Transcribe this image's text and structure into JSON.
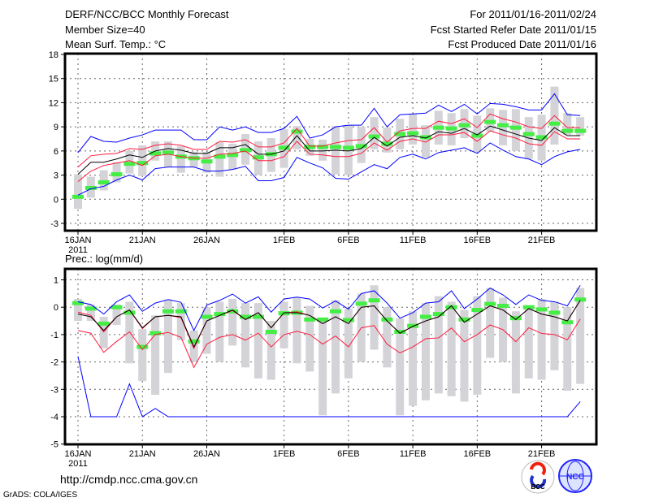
{
  "header": {
    "title": "DERF/NCC/BCC Monthly Forecast",
    "member_size": "Member Size=40",
    "variable": "Mean Surf. Temp.: °C",
    "period": "For 2011/01/16-2011/02/24",
    "started": "Fcst Started Refer Date 2011/01/15",
    "produced": "Fcst Produced Date 2011/01/16"
  },
  "footer": {
    "url": "http://cmdp.ncc.cma.gov.cn",
    "grads": "GrADS: COLA/IGES",
    "logo_bcc": "BCC",
    "logo_ncc": "NCC"
  },
  "colors": {
    "max_min": "#0000ff",
    "spread": "#ff1a3c",
    "mean": "#000000",
    "median": "#44ee44",
    "box": "#d3d3d8"
  },
  "chart_data": [
    {
      "type": "line",
      "title": "Mean Surf. Temp.: °C",
      "x_tick_labels": [
        "16JAN",
        "21JAN",
        "26JAN",
        "1FEB",
        "6FEB",
        "11FEB",
        "16FEB",
        "21FEB"
      ],
      "x_tick_days": [
        0,
        5,
        10,
        16,
        21,
        26,
        31,
        36
      ],
      "x_year_label": "2011",
      "y_ticks": [
        "18",
        "15",
        "12",
        "9",
        "6",
        "3",
        "0",
        "-3"
      ],
      "y_tick_values": [
        18,
        15,
        12,
        9,
        6,
        3,
        0,
        -3
      ],
      "ylim": [
        -3.9,
        18
      ],
      "grid": true,
      "days": 40,
      "series": [
        {
          "name": "max",
          "color_key": "max_min",
          "values": [
            5.8,
            7.8,
            7.2,
            7.1,
            7.6,
            8.0,
            8.6,
            8.6,
            8.6,
            7.4,
            7.4,
            9.0,
            8.6,
            9.0,
            8.3,
            8.3,
            8.8,
            10.3,
            7.6,
            8.0,
            9.0,
            9.2,
            9.2,
            11.3,
            9.0,
            10.5,
            10.6,
            10.7,
            11.7,
            10.9,
            11.8,
            10.6,
            11.9,
            11.8,
            11.5,
            11.1,
            11.1,
            13.1,
            10.5,
            10.4
          ]
        },
        {
          "name": "min",
          "color_key": "max_min",
          "values": [
            0.5,
            1.3,
            1.6,
            2.4,
            3.0,
            2.4,
            3.8,
            4.0,
            4.0,
            4.0,
            3.5,
            3.5,
            3.7,
            4.1,
            2.3,
            2.3,
            2.7,
            5.2,
            4.5,
            3.9,
            2.6,
            2.5,
            3.4,
            4.3,
            3.8,
            5.2,
            5.6,
            5.0,
            5.8,
            6.1,
            6.4,
            5.7,
            7.0,
            6.1,
            5.3,
            5.0,
            4.3,
            5.3,
            5.9,
            6.2
          ]
        },
        {
          "name": "upper",
          "color_key": "spread",
          "values": [
            4.0,
            5.4,
            5.6,
            5.7,
            6.3,
            6.2,
            6.7,
            6.9,
            6.7,
            6.2,
            6.2,
            7.2,
            7.1,
            7.4,
            6.5,
            6.5,
            7.0,
            8.8,
            6.6,
            6.6,
            7.0,
            7.3,
            7.4,
            8.9,
            7.1,
            8.5,
            8.8,
            8.8,
            9.7,
            9.4,
            10.0,
            8.9,
            10.6,
            10.0,
            9.6,
            9.0,
            8.8,
            10.4,
            8.9,
            8.9
          ]
        },
        {
          "name": "lower",
          "color_key": "spread",
          "values": [
            2.2,
            3.5,
            4.2,
            4.5,
            4.8,
            4.2,
            5.4,
            5.6,
            5.3,
            5.1,
            5.1,
            5.6,
            5.7,
            6.0,
            4.8,
            4.8,
            5.3,
            7.2,
            5.6,
            5.5,
            5.3,
            5.3,
            5.7,
            7.0,
            6.1,
            7.2,
            7.5,
            7.1,
            8.0,
            8.0,
            8.3,
            7.2,
            8.5,
            8.0,
            7.6,
            6.9,
            6.7,
            8.4,
            7.5,
            7.5
          ]
        },
        {
          "name": "mean",
          "color_key": "mean",
          "values": [
            3.1,
            4.6,
            4.6,
            5.0,
            5.5,
            5.2,
            6.0,
            6.3,
            6.1,
            5.7,
            5.7,
            6.4,
            6.4,
            6.8,
            5.6,
            5.6,
            6.0,
            7.9,
            6.0,
            6.0,
            6.1,
            6.0,
            6.3,
            7.7,
            6.6,
            7.7,
            7.9,
            7.6,
            8.4,
            8.2,
            8.8,
            8.0,
            9.1,
            8.6,
            8.1,
            7.6,
            7.3,
            8.9,
            7.9,
            7.9
          ]
        }
      ],
      "median": [
        0.3,
        1.4,
        2.1,
        3.1,
        4.4,
        4.5,
        5.7,
        5.8,
        5.3,
        5.1,
        4.7,
        5.3,
        5.5,
        6.1,
        5.2,
        5.6,
        6.4,
        8.4,
        6.5,
        6.5,
        6.5,
        6.4,
        6.6,
        7.8,
        6.9,
        8.1,
        8.2,
        7.7,
        8.9,
        8.8,
        9.2,
        7.9,
        9.6,
        9.2,
        8.9,
        8.1,
        7.7,
        9.4,
        8.5,
        8.5
      ],
      "box_range": [
        [
          -1.2,
          3.1
        ],
        [
          0.2,
          2.8
        ],
        [
          1.1,
          3.6
        ],
        [
          2.1,
          4.6
        ],
        [
          3.2,
          6.0
        ],
        [
          2.9,
          6.7
        ],
        [
          4.8,
          7.2
        ],
        [
          4.0,
          7.2
        ],
        [
          3.3,
          6.6
        ],
        [
          4.0,
          5.9
        ],
        [
          3.3,
          5.9
        ],
        [
          2.8,
          7.1
        ],
        [
          3.7,
          6.9
        ],
        [
          4.3,
          8.1
        ],
        [
          3.0,
          7.2
        ],
        [
          3.4,
          7.6
        ],
        [
          3.9,
          8.7
        ],
        [
          6.2,
          9.1
        ],
        [
          5.4,
          7.5
        ],
        [
          4.8,
          7.4
        ],
        [
          3.1,
          9.1
        ],
        [
          3.0,
          9.2
        ],
        [
          4.5,
          9.0
        ],
        [
          6.2,
          10.2
        ],
        [
          5.8,
          8.9
        ],
        [
          6.2,
          10.0
        ],
        [
          6.8,
          10.6
        ],
        [
          5.2,
          9.2
        ],
        [
          6.8,
          11.0
        ],
        [
          6.7,
          10.7
        ],
        [
          7.6,
          11.2
        ],
        [
          5.9,
          10.4
        ],
        [
          8.4,
          11.3
        ],
        [
          6.7,
          11.1
        ],
        [
          6.0,
          11.2
        ],
        [
          5.0,
          10.2
        ],
        [
          4.8,
          10.5
        ],
        [
          6.8,
          14.0
        ],
        [
          8.0,
          10.7
        ],
        [
          7.9,
          10.2
        ]
      ]
    },
    {
      "type": "line",
      "title": "Prec.: log(mm/d)",
      "x_tick_labels": [
        "16JAN",
        "21JAN",
        "26JAN",
        "1FEB",
        "6FEB",
        "11FEB",
        "16FEB",
        "21FEB"
      ],
      "x_tick_days": [
        0,
        5,
        10,
        16,
        21,
        26,
        31,
        36
      ],
      "x_year_label": "2011",
      "y_ticks": [
        "1",
        "0",
        "-1",
        "-2",
        "-3",
        "-4",
        "-5"
      ],
      "y_tick_values": [
        1,
        0,
        -1,
        -2,
        -3,
        -4,
        -5
      ],
      "ylim": [
        -5,
        1.45
      ],
      "grid": true,
      "days": 40,
      "series": [
        {
          "name": "max",
          "color_key": "max_min",
          "values": [
            0.2,
            0.1,
            -0.25,
            0.2,
            0.45,
            -0.15,
            0.15,
            0.28,
            0.18,
            -0.85,
            0.08,
            0.25,
            0.48,
            0.15,
            0.38,
            -0.18,
            0.3,
            0.37,
            0.3,
            -0.03,
            0.23,
            -0.07,
            0.5,
            0.6,
            0.15,
            -0.4,
            -0.2,
            0.15,
            0.2,
            0.6,
            -0.05,
            0.3,
            0.7,
            0.45,
            0.1,
            0.45,
            0.25,
            0.2,
            0.05,
            0.8
          ]
        },
        {
          "name": "min",
          "color_key": "max_min",
          "values": [
            -1.8,
            -4,
            -4,
            -4,
            -2.8,
            -4,
            -3.7,
            -4,
            -4,
            -4,
            -4,
            -4,
            -4,
            -4,
            -4,
            -4,
            -4,
            -4,
            -4,
            -4,
            -4,
            -4,
            -4,
            -4,
            -4,
            -4,
            -4,
            -4,
            -4,
            -4,
            -4,
            -4,
            -4,
            -4,
            -4,
            -4,
            -4,
            -4,
            -4,
            -3.45
          ]
        },
        {
          "name": "lower",
          "color_key": "spread",
          "values": [
            -0.85,
            -0.95,
            -1.65,
            -1.25,
            -0.9,
            -1.55,
            -1.0,
            -0.92,
            -1.1,
            -2.2,
            -1.35,
            -1.1,
            -1.0,
            -1.2,
            -0.95,
            -1.45,
            -1.0,
            -0.88,
            -1.0,
            -1.35,
            -1.05,
            -1.45,
            -0.75,
            -0.67,
            -1.35,
            -1.67,
            -1.45,
            -1.15,
            -1.12,
            -0.76,
            -1.26,
            -1.0,
            -0.65,
            -0.82,
            -1.26,
            -0.75,
            -0.96,
            -1.0,
            -1.19,
            -0.43
          ]
        },
        {
          "name": "upper",
          "color_key": "spread",
          "values": [
            -0.18,
            -0.3,
            -0.9,
            -0.35,
            -0.1,
            -0.78,
            -0.35,
            -0.3,
            -0.38,
            -1.5,
            -0.5,
            -0.3,
            -0.12,
            -0.45,
            -0.2,
            -0.75,
            -0.2,
            -0.17,
            -0.3,
            -0.6,
            -0.35,
            -0.6,
            0.0,
            0.05,
            -0.5,
            -0.95,
            -0.7,
            -0.5,
            -0.35,
            0.05,
            -0.55,
            -0.25,
            0.05,
            -0.1,
            -0.45,
            -0.05,
            -0.25,
            -0.35,
            -0.5,
            0.25
          ]
        },
        {
          "name": "mean",
          "color_key": "mean",
          "values": [
            -0.25,
            -0.35,
            -0.85,
            -0.35,
            -0.1,
            -0.75,
            -0.35,
            -0.3,
            -0.35,
            -1.45,
            -0.5,
            -0.3,
            -0.1,
            -0.45,
            -0.2,
            -0.75,
            -0.2,
            -0.2,
            -0.3,
            -0.6,
            -0.35,
            -0.6,
            0.0,
            0.05,
            -0.5,
            -0.95,
            -0.7,
            -0.5,
            -0.35,
            0.05,
            -0.55,
            -0.25,
            0.05,
            -0.1,
            -0.45,
            -0.05,
            -0.25,
            -0.35,
            -0.5,
            0.25
          ]
        }
      ],
      "median": [
        0.15,
        -0.05,
        -0.6,
        0.0,
        -0.2,
        -1.45,
        -0.95,
        -0.15,
        -0.15,
        -1.25,
        -0.35,
        -0.25,
        -0.15,
        -0.35,
        -0.35,
        -0.9,
        -0.22,
        -0.2,
        -0.45,
        -0.45,
        -0.15,
        -0.47,
        0.13,
        0.25,
        -0.45,
        -0.9,
        -0.68,
        -0.35,
        -0.25,
        0.0,
        -0.45,
        -0.1,
        0.12,
        0.05,
        -0.4,
        0.0,
        -0.08,
        -0.2,
        -0.55,
        0.28
      ],
      "box_range": [
        [
          -0.5,
          0.3
        ],
        [
          -0.5,
          0.1
        ],
        [
          -1.5,
          -0.35
        ],
        [
          -0.65,
          0.1
        ],
        [
          -2.05,
          0.2
        ],
        [
          -2.7,
          -0.8
        ],
        [
          -3.2,
          -0.3
        ],
        [
          -2.4,
          0.25
        ],
        [
          -1.2,
          0.15
        ],
        [
          -2.0,
          -0.85
        ],
        [
          -1.7,
          0.0
        ],
        [
          -2.0,
          0.2
        ],
        [
          -1.4,
          0.3
        ],
        [
          -2.2,
          0.15
        ],
        [
          -2.6,
          0.15
        ],
        [
          -2.65,
          -0.5
        ],
        [
          -1.5,
          0.2
        ],
        [
          -2.05,
          0.35
        ],
        [
          -2.35,
          0.05
        ],
        [
          -3.95,
          -0.4
        ],
        [
          -3.15,
          0.25
        ],
        [
          -2.6,
          -0.05
        ],
        [
          -2.0,
          0.5
        ],
        [
          -1.55,
          0.8
        ],
        [
          -2.2,
          0.0
        ],
        [
          -3.95,
          -0.4
        ],
        [
          -3.6,
          -0.15
        ],
        [
          -3.4,
          0.15
        ],
        [
          -3.15,
          0.4
        ],
        [
          -3.25,
          0.2
        ],
        [
          -3.45,
          -0.1
        ],
        [
          -3.2,
          0.4
        ],
        [
          -1.85,
          0.7
        ],
        [
          -2.0,
          0.35
        ],
        [
          -3.15,
          -0.15
        ],
        [
          -2.6,
          0.0
        ],
        [
          -2.65,
          0.3
        ],
        [
          -2.3,
          0.2
        ],
        [
          -3.05,
          0.0
        ],
        [
          -2.8,
          0.7
        ]
      ]
    }
  ]
}
